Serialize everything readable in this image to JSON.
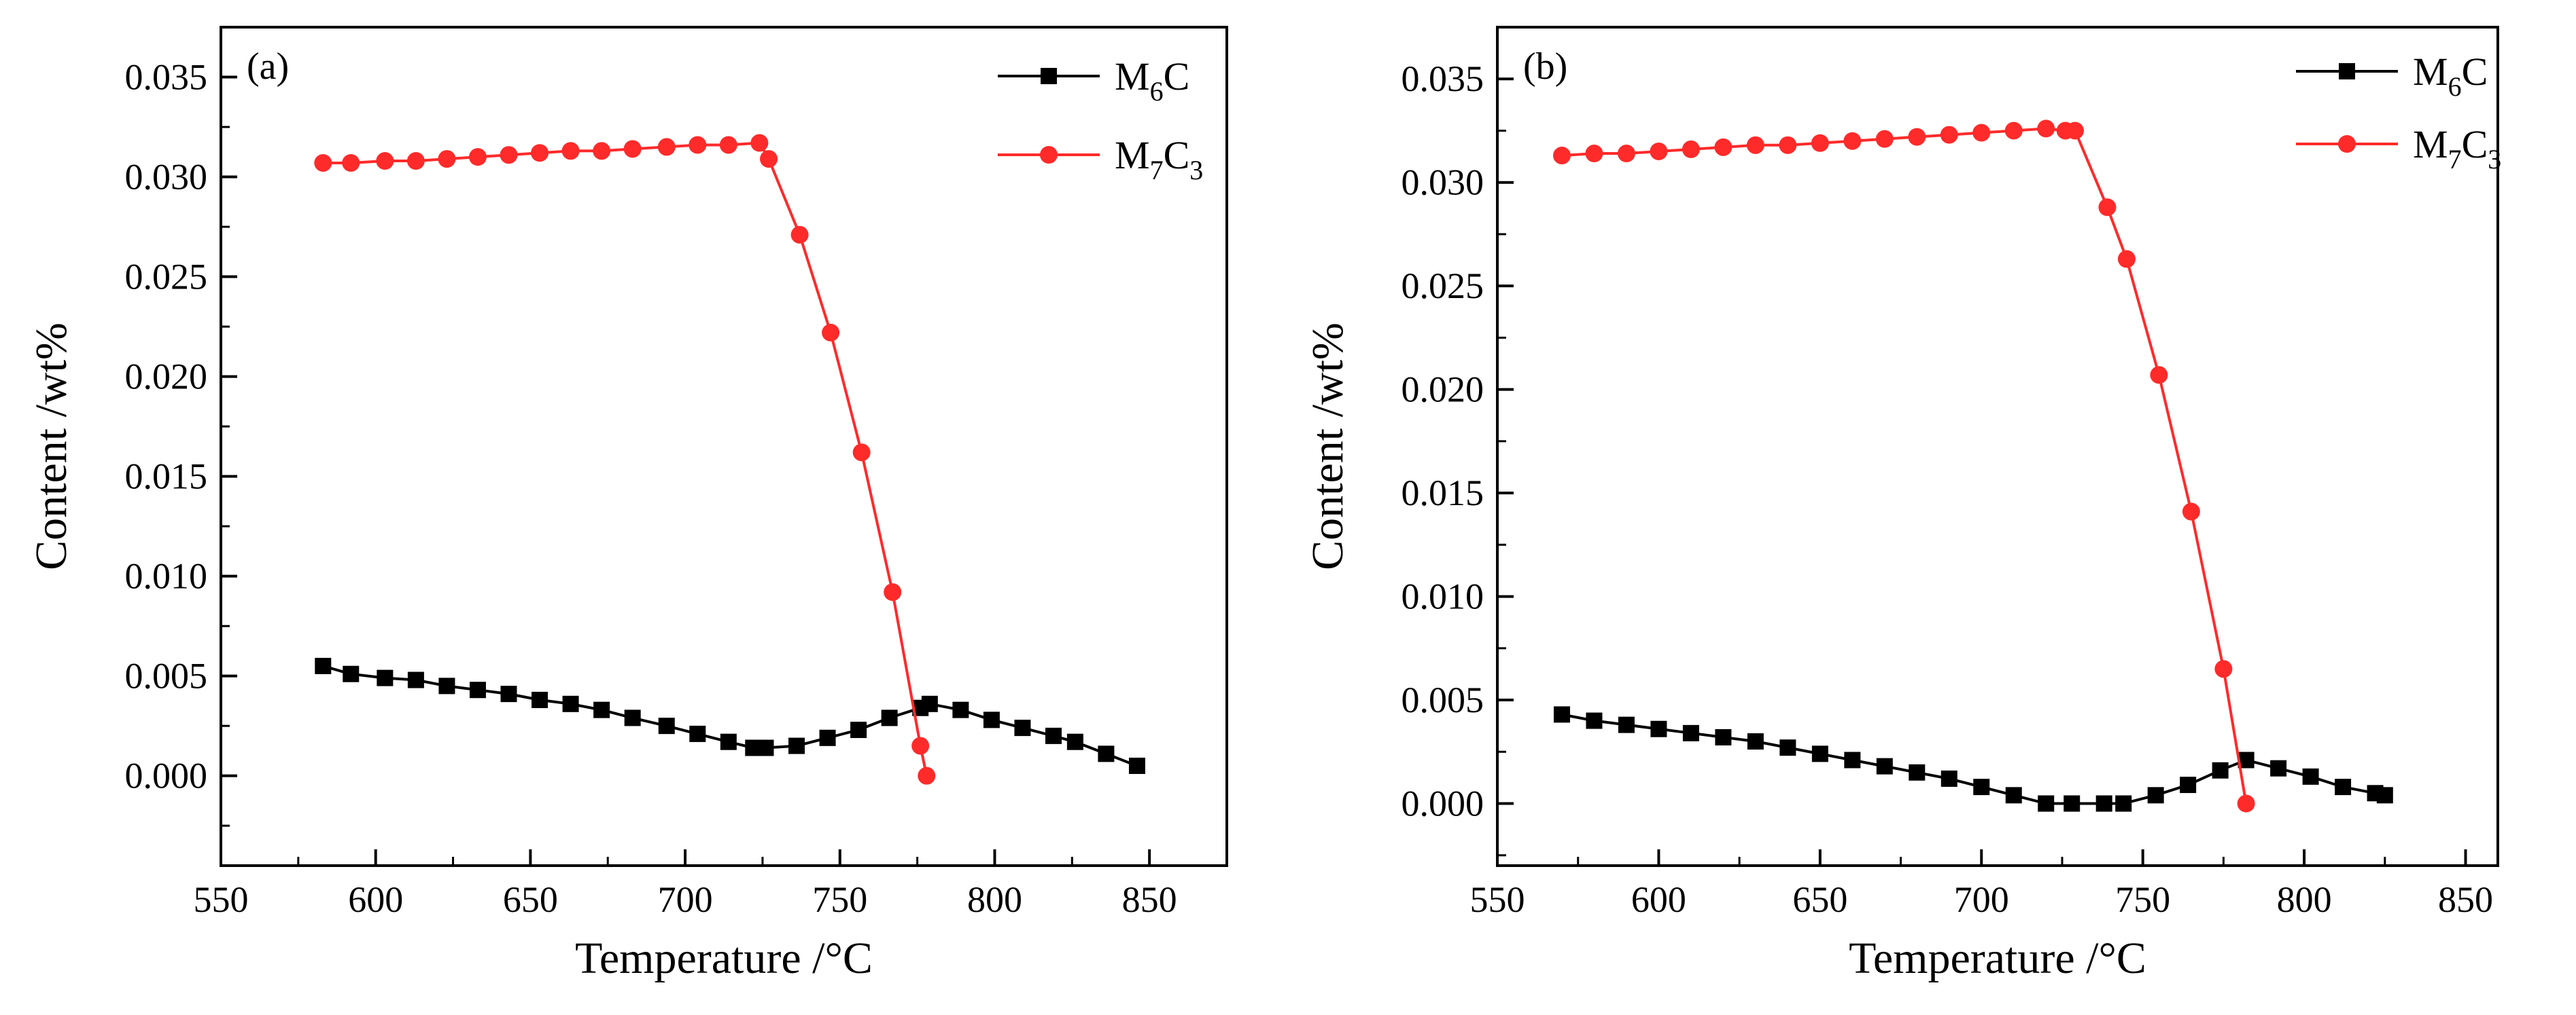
{
  "chart_data": [
    {
      "type": "line",
      "panel_label": "(a)",
      "xlabel": "Temperature /°C",
      "ylabel": "Content /wt%",
      "xlim": [
        550,
        875
      ],
      "ylim": [
        -0.0045,
        0.0375
      ],
      "xticks": [
        550,
        600,
        650,
        700,
        750,
        800,
        850
      ],
      "xtick_labels": [
        "550",
        "600",
        "650",
        "700",
        "750",
        "800",
        "850"
      ],
      "yticks": [
        0.0,
        0.005,
        0.01,
        0.015,
        0.02,
        0.025,
        0.03,
        0.035
      ],
      "ytick_labels": [
        "0.000",
        "0.005",
        "0.010",
        "0.015",
        "0.020",
        "0.025",
        "0.030",
        "0.035"
      ],
      "legend_position": "top-right",
      "series": [
        {
          "name": "M6C",
          "legend": {
            "base": "M",
            "sub1": "6",
            "mid": "C",
            "sub2": ""
          },
          "color": "#000000",
          "marker": "square",
          "points": [
            [
              583,
              0.0055
            ],
            [
              592,
              0.0051
            ],
            [
              603,
              0.0049
            ],
            [
              613,
              0.0048
            ],
            [
              623,
              0.0045
            ],
            [
              633,
              0.0043
            ],
            [
              643,
              0.0041
            ],
            [
              653,
              0.0038
            ],
            [
              663,
              0.0036
            ],
            [
              673,
              0.0033
            ],
            [
              683,
              0.0029
            ],
            [
              694,
              0.0025
            ],
            [
              704,
              0.0021
            ],
            [
              714,
              0.0017
            ],
            [
              722,
              0.0014
            ],
            [
              726,
              0.0014
            ],
            [
              736,
              0.0015
            ],
            [
              746,
              0.0019
            ],
            [
              756,
              0.0023
            ],
            [
              766,
              0.0029
            ],
            [
              776,
              0.0034
            ],
            [
              779,
              0.0036
            ],
            [
              789,
              0.0033
            ],
            [
              799,
              0.0028
            ],
            [
              809,
              0.0024
            ],
            [
              819,
              0.002
            ],
            [
              826,
              0.0017
            ],
            [
              836,
              0.0011
            ],
            [
              846,
              0.0005
            ]
          ]
        },
        {
          "name": "M7C3",
          "legend": {
            "base": "M",
            "sub1": "7",
            "mid": "C",
            "sub2": "3"
          },
          "color": "#ff2a2a",
          "marker": "circle",
          "points": [
            [
              583,
              0.0307
            ],
            [
              592,
              0.0307
            ],
            [
              603,
              0.0308
            ],
            [
              613,
              0.0308
            ],
            [
              623,
              0.0309
            ],
            [
              633,
              0.031
            ],
            [
              643,
              0.0311
            ],
            [
              653,
              0.0312
            ],
            [
              663,
              0.0313
            ],
            [
              673,
              0.0313
            ],
            [
              683,
              0.0314
            ],
            [
              694,
              0.0315
            ],
            [
              704,
              0.0316
            ],
            [
              714,
              0.0316
            ],
            [
              724,
              0.0317
            ],
            [
              727,
              0.0309
            ],
            [
              737,
              0.0271
            ],
            [
              747,
              0.0222
            ],
            [
              757,
              0.0162
            ],
            [
              767,
              0.0092
            ],
            [
              776,
              0.0015
            ],
            [
              778,
              0.0
            ]
          ]
        }
      ]
    },
    {
      "type": "line",
      "panel_label": "(b)",
      "xlabel": "Temperature /°C",
      "ylabel": "Content /wt%",
      "xlim": [
        550,
        860
      ],
      "ylim": [
        -0.003,
        0.0375
      ],
      "xticks": [
        550,
        600,
        650,
        700,
        750,
        800,
        850
      ],
      "xtick_labels": [
        "550",
        "600",
        "650",
        "700",
        "750",
        "800",
        "850"
      ],
      "yticks": [
        0.0,
        0.005,
        0.01,
        0.015,
        0.02,
        0.025,
        0.03,
        0.035
      ],
      "ytick_labels": [
        "0.000",
        "0.005",
        "0.010",
        "0.015",
        "0.020",
        "0.025",
        "0.030",
        "0.035"
      ],
      "legend_position": "top-right",
      "series": [
        {
          "name": "M6C",
          "legend": {
            "base": "M",
            "sub1": "6",
            "mid": "C",
            "sub2": ""
          },
          "color": "#000000",
          "marker": "square",
          "points": [
            [
              570,
              0.0043
            ],
            [
              580,
              0.004
            ],
            [
              590,
              0.0038
            ],
            [
              600,
              0.0036
            ],
            [
              610,
              0.0034
            ],
            [
              620,
              0.0032
            ],
            [
              630,
              0.003
            ],
            [
              640,
              0.0027
            ],
            [
              650,
              0.0024
            ],
            [
              660,
              0.0021
            ],
            [
              670,
              0.0018
            ],
            [
              680,
              0.0015
            ],
            [
              690,
              0.0012
            ],
            [
              700,
              0.0008
            ],
            [
              710,
              0.0004
            ],
            [
              720,
              0.0
            ],
            [
              728,
              0.0
            ],
            [
              738,
              0.0
            ],
            [
              744,
              0.0
            ],
            [
              754,
              0.0004
            ],
            [
              764,
              0.0009
            ],
            [
              774,
              0.0016
            ],
            [
              782,
              0.0021
            ],
            [
              792,
              0.0017
            ],
            [
              802,
              0.0013
            ],
            [
              812,
              0.0008
            ],
            [
              822,
              0.0005
            ],
            [
              825,
              0.0004
            ]
          ]
        },
        {
          "name": "M7C3",
          "legend": {
            "base": "M",
            "sub1": "7",
            "mid": "C",
            "sub2": "3"
          },
          "color": "#ff2a2a",
          "marker": "circle",
          "points": [
            [
              570,
              0.0313
            ],
            [
              580,
              0.0314
            ],
            [
              590,
              0.0314
            ],
            [
              600,
              0.0315
            ],
            [
              610,
              0.0316
            ],
            [
              620,
              0.0317
            ],
            [
              630,
              0.0318
            ],
            [
              640,
              0.0318
            ],
            [
              650,
              0.0319
            ],
            [
              660,
              0.032
            ],
            [
              670,
              0.0321
            ],
            [
              680,
              0.0322
            ],
            [
              690,
              0.0323
            ],
            [
              700,
              0.0324
            ],
            [
              710,
              0.0325
            ],
            [
              720,
              0.0326
            ],
            [
              726,
              0.0325
            ],
            [
              729,
              0.0325
            ],
            [
              739,
              0.0288
            ],
            [
              745,
              0.0263
            ],
            [
              755,
              0.0207
            ],
            [
              765,
              0.0141
            ],
            [
              775,
              0.0065
            ],
            [
              782,
              0.0
            ]
          ]
        }
      ]
    }
  ]
}
